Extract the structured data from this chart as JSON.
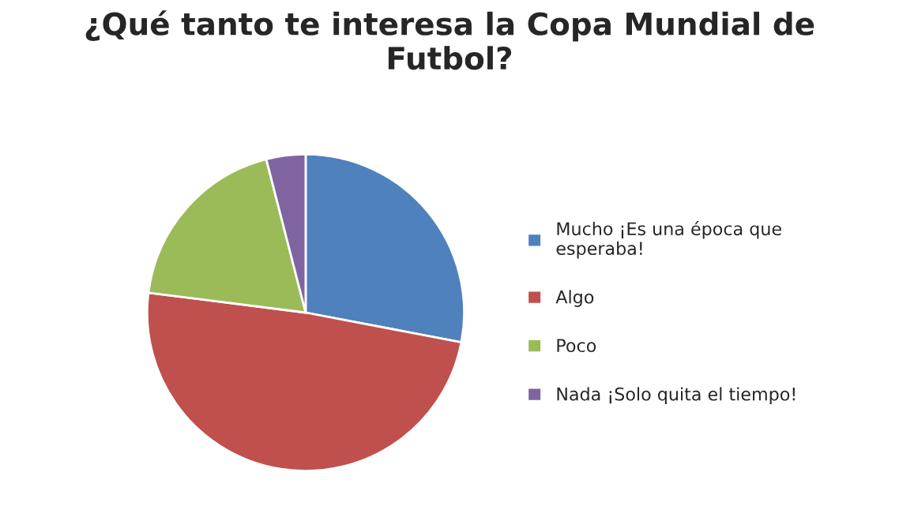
{
  "chart_data": {
    "type": "pie",
    "title": "¿Qué tanto te interesa la Copa Mundial de\nFutbol?",
    "categories": [
      "Mucho ¡Es una época que\nesperaba!",
      "Algo",
      "Poco",
      "Nada ¡Solo quita el tiempo!"
    ],
    "values": [
      28,
      49,
      19,
      4
    ],
    "colors": [
      "#4f81bd",
      "#c0504d",
      "#9bbb59",
      "#8064a2"
    ],
    "legend": "right"
  }
}
